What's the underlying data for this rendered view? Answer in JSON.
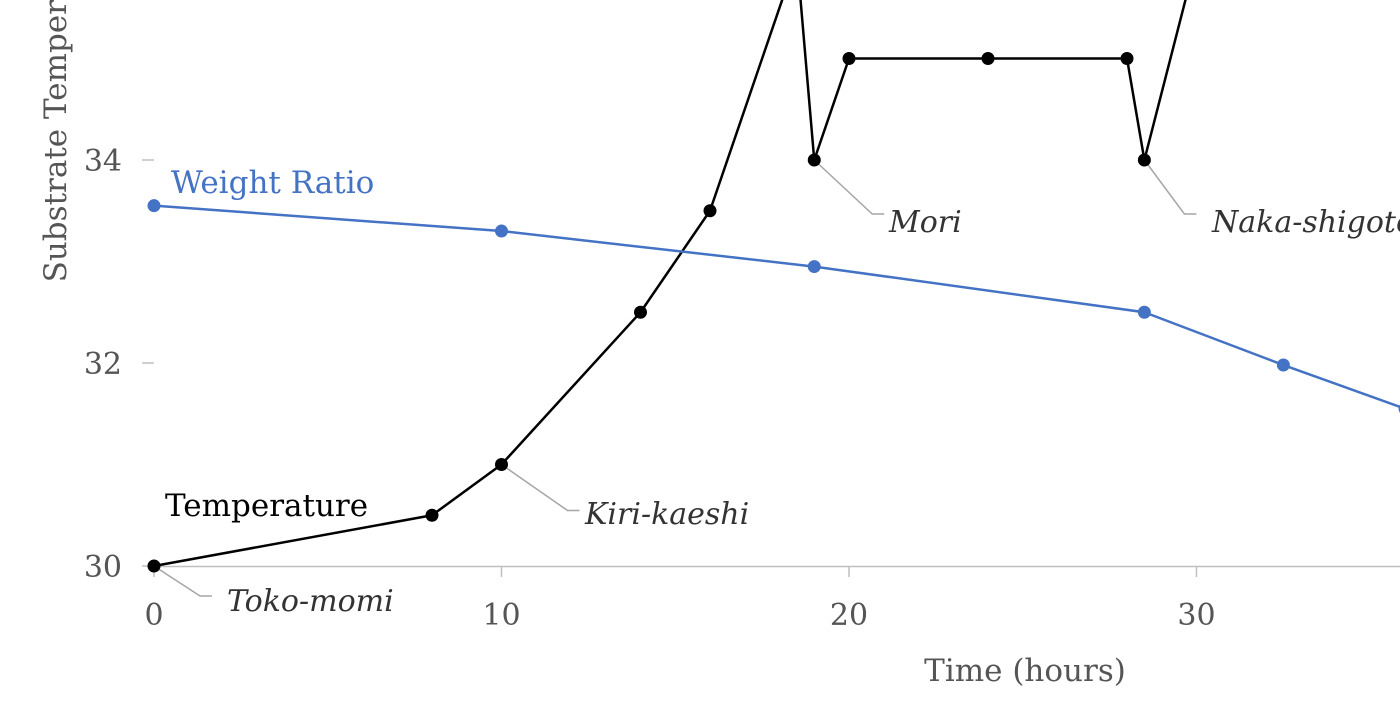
{
  "chart_data": {
    "type": "line",
    "xlabel": "Time (hours)",
    "ylabel": "Substrate Temper",
    "x_ticks": [
      "0",
      "10",
      "20",
      "30"
    ],
    "y_ticks": [
      "30",
      "32",
      "34"
    ],
    "xlim": [
      0,
      36
    ],
    "ylim": [
      30,
      35.5
    ],
    "series": [
      {
        "name": "Temperature",
        "color": "#000000",
        "points": [
          {
            "x": 0,
            "y": 30
          },
          {
            "x": 8,
            "y": 30.5
          },
          {
            "x": 10,
            "y": 31
          },
          {
            "x": 14,
            "y": 32.5
          },
          {
            "x": 16,
            "y": 33.5
          },
          {
            "x": 18.5,
            "y": 36
          },
          {
            "x": 19,
            "y": 34
          },
          {
            "x": 20,
            "y": 35
          },
          {
            "x": 24,
            "y": 35
          },
          {
            "x": 28,
            "y": 35
          },
          {
            "x": 28.5,
            "y": 34
          },
          {
            "x": 30,
            "y": 36
          }
        ]
      },
      {
        "name": "Weight Ratio",
        "color": "#4472c4",
        "points": [
          {
            "x": 0,
            "y": 33.55
          },
          {
            "x": 10,
            "y": 33.3
          },
          {
            "x": 19,
            "y": 32.95
          },
          {
            "x": 28.5,
            "y": 32.5
          },
          {
            "x": 32.5,
            "y": 31.98
          },
          {
            "x": 36,
            "y": 31.55
          }
        ]
      }
    ],
    "annotations": [
      {
        "text": "Toko-momi",
        "x": 0,
        "y": 30
      },
      {
        "text": "Kiri-kaeshi",
        "x": 10,
        "y": 31
      },
      {
        "text": "Mori",
        "x": 19,
        "y": 34
      },
      {
        "text": "Naka-shigoto",
        "x": 28.5,
        "y": 34
      }
    ]
  }
}
